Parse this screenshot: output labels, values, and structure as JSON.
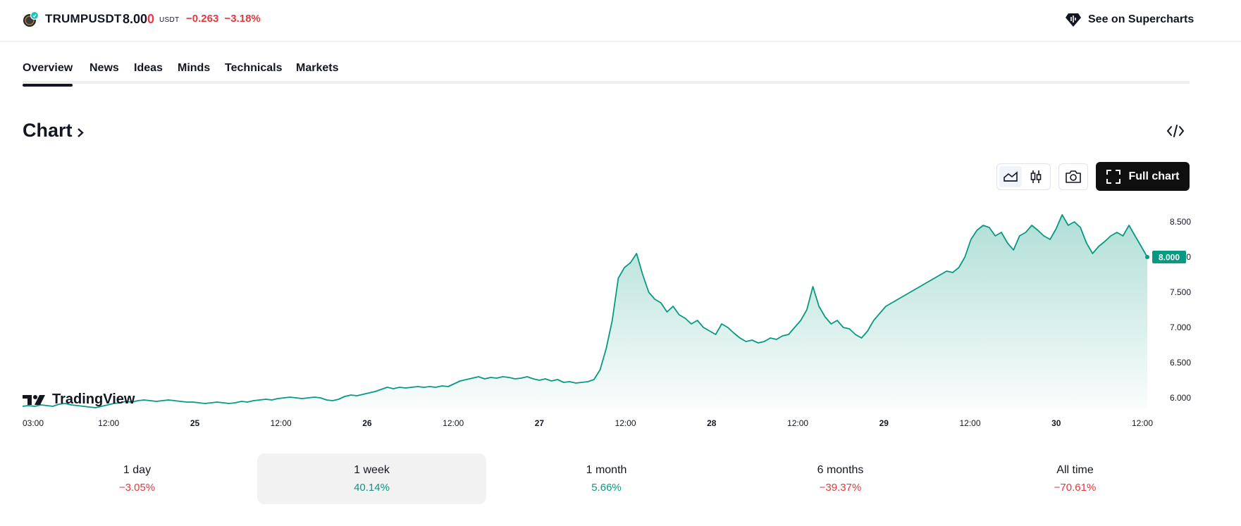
{
  "header": {
    "symbol": "TRUMPUSDT",
    "price_main": "8.00",
    "price_last": "0",
    "currency": "USDT",
    "change": "−0.263",
    "change_pct": "−3.18%",
    "supercharts_label": "See on Supercharts",
    "logo_icon": "trump-coin-icon"
  },
  "tabs": [
    {
      "label": "Overview",
      "active": true
    },
    {
      "label": "News"
    },
    {
      "label": "Ideas"
    },
    {
      "label": "Minds"
    },
    {
      "label": "Technicals"
    },
    {
      "label": "Markets"
    }
  ],
  "section": {
    "title": "Chart",
    "embed_icon": "code-embed-icon"
  },
  "toolbar": {
    "area_style_icon": "area-chart-icon",
    "candle_style_icon": "candlestick-icon",
    "snapshot_icon": "camera-icon",
    "full_chart_label": "Full chart",
    "full_chart_icon": "fullscreen-icon"
  },
  "watermark": "TradingView",
  "chart_data": {
    "type": "area",
    "x_ticks": [
      "03:00",
      "12:00",
      "25",
      "12:00",
      "26",
      "12:00",
      "27",
      "12:00",
      "28",
      "12:00",
      "29",
      "12:00",
      "30",
      "12:00"
    ],
    "bold_ticks": [
      "25",
      "26",
      "27",
      "28",
      "29",
      "30"
    ],
    "y_ticks": [
      "8.500",
      "8.000",
      "7.500",
      "7.000",
      "6.500",
      "6.000"
    ],
    "ylim": [
      5.85,
      8.75
    ],
    "last_value": "8.000",
    "line_color": "#089981",
    "series": [
      {
        "values": [
          5.88,
          5.89,
          5.88,
          5.9,
          5.89,
          5.88,
          5.91,
          5.92,
          5.9,
          5.89,
          5.88,
          5.87,
          5.86,
          5.88,
          5.9,
          5.92,
          5.93,
          5.95,
          5.94,
          5.96,
          5.97,
          5.96,
          5.95,
          5.96,
          5.97,
          5.96,
          5.95,
          5.94,
          5.94,
          5.93,
          5.92,
          5.93,
          5.94,
          5.93,
          5.92,
          5.93,
          5.95,
          5.94,
          5.96,
          5.97,
          5.98,
          5.97,
          5.99,
          6.0,
          6.01,
          6.0,
          5.99,
          6.0,
          6.01,
          6.0,
          5.97,
          5.96,
          5.98,
          6.02,
          6.04,
          6.03,
          6.05,
          6.07,
          6.09,
          6.12,
          6.15,
          6.13,
          6.15,
          6.14,
          6.15,
          6.16,
          6.15,
          6.16,
          6.15,
          6.17,
          6.16,
          6.2,
          6.24,
          6.26,
          6.28,
          6.3,
          6.27,
          6.29,
          6.28,
          6.3,
          6.29,
          6.27,
          6.28,
          6.3,
          6.27,
          6.25,
          6.27,
          6.24,
          6.26,
          6.22,
          6.23,
          6.21,
          6.22,
          6.23,
          6.26,
          6.4,
          6.7,
          7.1,
          7.7,
          7.85,
          7.92,
          8.05,
          7.75,
          7.5,
          7.4,
          7.35,
          7.22,
          7.3,
          7.18,
          7.13,
          7.05,
          7.1,
          7.0,
          6.95,
          6.9,
          7.05,
          7.0,
          6.92,
          6.85,
          6.8,
          6.82,
          6.78,
          6.8,
          6.85,
          6.83,
          6.88,
          6.9,
          7.0,
          7.1,
          7.25,
          7.58,
          7.3,
          7.15,
          7.05,
          7.1,
          7.0,
          6.98,
          6.9,
          6.85,
          6.95,
          7.1,
          7.2,
          7.3,
          7.35,
          7.4,
          7.45,
          7.5,
          7.55,
          7.6,
          7.65,
          7.7,
          7.75,
          7.8,
          7.78,
          7.85,
          8.0,
          8.25,
          8.38,
          8.45,
          8.42,
          8.3,
          8.35,
          8.2,
          8.1,
          8.3,
          8.35,
          8.45,
          8.38,
          8.3,
          8.25,
          8.4,
          8.6,
          8.45,
          8.5,
          8.42,
          8.2,
          8.05,
          8.15,
          8.22,
          8.3,
          8.35,
          8.3,
          8.45,
          8.3,
          8.15,
          8.0
        ]
      }
    ]
  },
  "periods": [
    {
      "label": "1 day",
      "value": "−3.05%",
      "trend": "neg"
    },
    {
      "label": "1 week",
      "value": "40.14%",
      "trend": "pos",
      "active": true
    },
    {
      "label": "1 month",
      "value": "5.66%",
      "trend": "pos"
    },
    {
      "label": "6 months",
      "value": "−39.37%",
      "trend": "neg"
    },
    {
      "label": "All time",
      "value": "−70.61%",
      "trend": "neg"
    }
  ]
}
